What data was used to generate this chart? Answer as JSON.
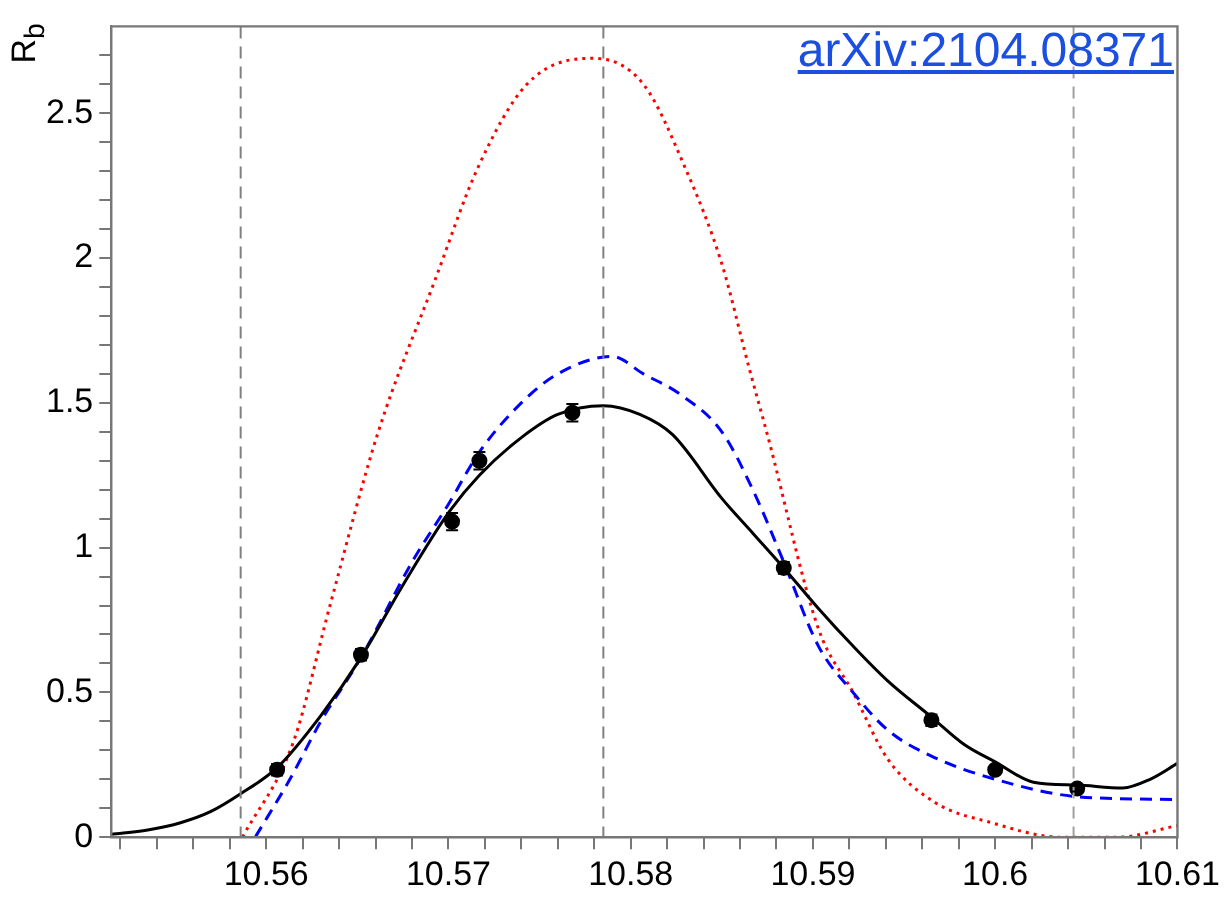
{
  "chart_data": {
    "type": "scatter",
    "ylabel": "R$_{b}$",
    "annotations": [
      "arXiv:2104.08371"
    ],
    "xlim": [
      10.5515,
      10.61
    ],
    "xticks": [
      {
        "value": 10.552,
        "label": null
      },
      {
        "value": 10.554,
        "label": null
      },
      {
        "value": 10.556,
        "label": null
      },
      {
        "value": 10.558,
        "label": null
      },
      10.56,
      {
        "value": 10.562,
        "label": null
      },
      {
        "value": 10.564,
        "label": null
      },
      {
        "value": 10.566,
        "label": null
      },
      {
        "value": 10.568,
        "label": null
      },
      10.57,
      {
        "value": 10.572,
        "label": null
      },
      {
        "value": 10.574,
        "label": null
      },
      {
        "value": 10.576,
        "label": null
      },
      {
        "value": 10.578,
        "label": null
      },
      10.58,
      {
        "value": 10.582,
        "label": null
      },
      {
        "value": 10.584,
        "label": null
      },
      {
        "value": 10.586,
        "label": null
      },
      {
        "value": 10.588,
        "label": null
      },
      10.59,
      {
        "value": 10.592,
        "label": null
      },
      {
        "value": 10.594,
        "label": null
      },
      {
        "value": 10.596,
        "label": null
      },
      {
        "value": 10.598,
        "label": null
      },
      10.6,
      {
        "value": 10.602,
        "label": null
      },
      {
        "value": 10.604,
        "label": null
      },
      {
        "value": 10.606,
        "label": null
      },
      {
        "value": 10.608,
        "label": null
      },
      10.61
    ],
    "ylim": [
      0,
      2.8
    ],
    "yticks": [
      0,
      {
        "value": 0.1,
        "label": null
      },
      {
        "value": 0.2,
        "label": null
      },
      {
        "value": 0.3,
        "label": null
      },
      {
        "value": 0.4,
        "label": null
      },
      0.5,
      {
        "value": 0.6,
        "label": null
      },
      {
        "value": 0.7,
        "label": null
      },
      {
        "value": 0.8,
        "label": null
      },
      {
        "value": 0.9,
        "label": null
      },
      1,
      {
        "value": 1.1,
        "label": null
      },
      {
        "value": 1.2,
        "label": null
      },
      {
        "value": 1.3,
        "label": null
      },
      {
        "value": 1.4,
        "label": null
      },
      1.5,
      {
        "value": 1.6,
        "label": null
      },
      {
        "value": 1.7,
        "label": null
      },
      {
        "value": 1.8,
        "label": null
      },
      {
        "value": 1.9,
        "label": null
      },
      2,
      {
        "value": 2.1,
        "label": null
      },
      {
        "value": 2.2,
        "label": null
      },
      {
        "value": 2.3,
        "label": null
      },
      {
        "value": 2.4,
        "label": null
      },
      2.5,
      {
        "value": 2.6,
        "label": null
      },
      {
        "value": 2.7,
        "label": null
      }
    ],
    "grid": false,
    "legend": false,
    "ref_lines": [
      {
        "axis": "x",
        "value": 10.5586,
        "color": "#808080",
        "line_style": "dashed"
      },
      {
        "axis": "x",
        "value": 10.5785,
        "color": "#808080",
        "line_style": "dashed"
      },
      {
        "axis": "x",
        "value": 10.6043,
        "color": "#a0a0a0",
        "line_style": "dashed"
      }
    ],
    "series": [
      {
        "type": "line",
        "color": "#000000",
        "line_style": "solid",
        "marker": "none",
        "x": [
          10.5515,
          10.5535,
          10.5553,
          10.557,
          10.5586,
          10.5606,
          10.563,
          10.5652,
          10.5675,
          10.57,
          10.5717,
          10.574,
          10.576,
          10.5785,
          10.5805,
          10.5823,
          10.585,
          10.5867,
          10.5884,
          10.5903,
          10.5922,
          10.5941,
          10.5965,
          10.5983,
          10.6,
          10.6021,
          10.6045,
          10.607,
          10.6085,
          10.61
        ],
        "values": [
          0.01,
          0.025,
          0.05,
          0.09,
          0.15,
          0.24,
          0.42,
          0.62,
          0.87,
          1.12,
          1.25,
          1.38,
          1.46,
          1.49,
          1.46,
          1.39,
          1.17,
          1.05,
          0.93,
          0.79,
          0.66,
          0.54,
          0.415,
          0.32,
          0.26,
          0.19,
          0.18,
          0.17,
          0.2,
          0.255
        ]
      },
      {
        "type": "line",
        "color": "#0000ff",
        "line_style": "dashed",
        "marker": "none",
        "x": [
          10.5594,
          10.5613,
          10.563,
          10.5652,
          10.568,
          10.57,
          10.5717,
          10.574,
          10.576,
          10.579,
          10.5807,
          10.5827,
          10.585,
          10.5867,
          10.5884,
          10.5903,
          10.5922,
          10.5941,
          10.5965,
          10.6,
          10.6045,
          10.61
        ],
        "values": [
          0,
          0.2,
          0.4,
          0.62,
          0.95,
          1.15,
          1.33,
          1.5,
          1.6,
          1.66,
          1.6,
          1.53,
          1.4,
          1.2,
          0.95,
          0.66,
          0.5,
          0.37,
          0.28,
          0.2,
          0.14,
          0.13
        ]
      },
      {
        "type": "line",
        "color": "#ff0000",
        "line_style": "dotted",
        "marker": "none",
        "x": [
          10.5587,
          10.5615,
          10.5635,
          10.5661,
          10.5693,
          10.5716,
          10.5743,
          10.5779,
          10.5807,
          10.583,
          10.585,
          10.5865,
          10.5875,
          10.5903,
          10.5922,
          10.5941,
          10.5967,
          10.5998,
          10.6036,
          10.6067,
          10.61
        ],
        "values": [
          0,
          0.33,
          0.8,
          1.39,
          1.93,
          2.31,
          2.6,
          2.69,
          2.6,
          2.31,
          1.98,
          1.62,
          1.39,
          0.72,
          0.5,
          0.27,
          0.12,
          0.05,
          0,
          0,
          0.04
        ]
      },
      {
        "type": "scatter",
        "color": "#000000",
        "marker": "circle",
        "x": [
          10.5606,
          10.5652,
          10.5702,
          10.5717,
          10.5768,
          10.5884,
          10.5965,
          10.6,
          10.6045
        ],
        "values": [
          0.233,
          0.63,
          1.09,
          1.3,
          1.466,
          0.93,
          0.404,
          0.233,
          0.168
        ],
        "errors": [
          0.02,
          0.02,
          0.03,
          0.03,
          0.03,
          0.02,
          0.02,
          0.01,
          0.01
        ]
      }
    ]
  }
}
